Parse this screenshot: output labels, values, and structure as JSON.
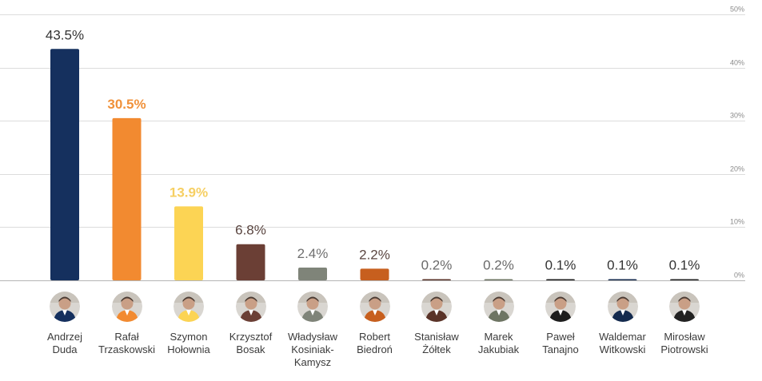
{
  "chart_data": {
    "type": "bar",
    "categories": [
      "Andrzej\nDuda",
      "Rafał\nTrzaskowski",
      "Szymon\nHołownia",
      "Krzysztof\nBosak",
      "Władysław\nKosiniak-\nKamysz",
      "Robert\nBiedroń",
      "Stanisław\nŻółtek",
      "Marek\nJakubiak",
      "Paweł\nTanajno",
      "Waldemar\nWitkowski",
      "Mirosław\nPiotrowski"
    ],
    "values": [
      43.5,
      30.5,
      13.9,
      6.8,
      2.4,
      2.2,
      0.2,
      0.2,
      0.1,
      0.1,
      0.1
    ],
    "value_labels": [
      "43.5%",
      "30.5%",
      "13.9%",
      "6.8%",
      "2.4%",
      "2.2%",
      "0.2%",
      "0.2%",
      "0.1%",
      "0.1%",
      "0.1%"
    ],
    "bar_colors": [
      "#15305e",
      "#f28a30",
      "#fcd454",
      "#6b3f35",
      "#7f8479",
      "#c75f1e",
      "#5a3328",
      "#6e7563",
      "#1d1d1d",
      "#142a4e",
      "#222222"
    ],
    "label_colors": [
      "#333333",
      "#f0913a",
      "#f6cf62",
      "#5a4540",
      "#6f6f6f",
      "#5a4540",
      "#6a6a6a",
      "#6a6a6a",
      "#333333",
      "#333333",
      "#333333"
    ],
    "ylim": [
      0,
      50
    ],
    "y_ticks": [
      0,
      10,
      20,
      30,
      40,
      50
    ],
    "y_tick_labels": [
      "0%",
      "10%",
      "20%",
      "30%",
      "40%",
      "50%"
    ],
    "y_axis_position": "right",
    "grid": true,
    "legend": "none",
    "title": "",
    "xlabel": "",
    "ylabel": ""
  },
  "avatar_icons": [
    "portrait-icon",
    "portrait-icon",
    "portrait-icon",
    "portrait-icon",
    "portrait-icon",
    "portrait-icon",
    "portrait-icon",
    "portrait-icon",
    "portrait-icon",
    "portrait-icon",
    "portrait-icon"
  ]
}
